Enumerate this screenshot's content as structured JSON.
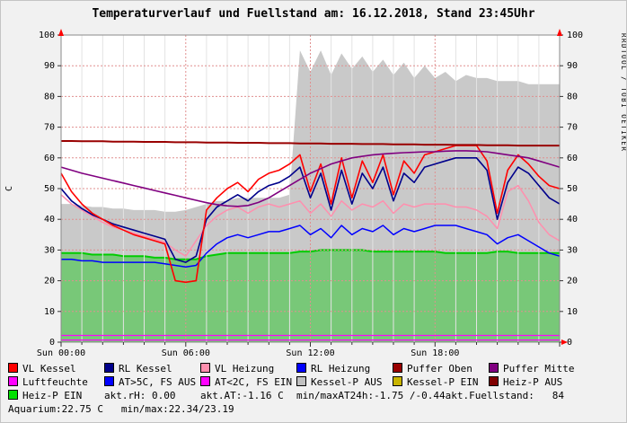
{
  "watermark": "RRDTOOL / TOBI OETIKER",
  "chart_data": {
    "type": "line",
    "title": "Temperaturverlauf und Fuellstand am: 16.12.2018, Stand 23:45Uhr",
    "xlabel": "",
    "ylabel": "C",
    "ylim": [
      0,
      100
    ],
    "yticks": [
      0,
      10,
      20,
      30,
      40,
      50,
      60,
      70,
      80,
      90,
      100
    ],
    "x_step_hours": 0.5,
    "x_range_hours": [
      0,
      24
    ],
    "x_ticks": [
      {
        "h": 0,
        "label": "Sun 00:00"
      },
      {
        "h": 6,
        "label": "Sun 06:00"
      },
      {
        "h": 12,
        "label": "Sun 12:00"
      },
      {
        "h": 18,
        "label": "Sun 18:00"
      }
    ],
    "grid": true,
    "legend_position": "bottom",
    "areas": [
      {
        "name": "Kessel-P AUS / Fuellstand",
        "fill": "#c9c9c9",
        "v": [
          45,
          45,
          44.5,
          44,
          44,
          43.5,
          43.5,
          43,
          43,
          43,
          42.5,
          42.5,
          43,
          44,
          45,
          46,
          46,
          47,
          47,
          47,
          47,
          47,
          48,
          95,
          88,
          95,
          87,
          94,
          89,
          93,
          88,
          92,
          87,
          91,
          86,
          90,
          86,
          88,
          85,
          87,
          86,
          86,
          85,
          85,
          85,
          84,
          84,
          84,
          84
        ]
      },
      {
        "name": "Heiz-P EIN",
        "fill": "rgba(0,200,0,0.40)",
        "line": "#00cc00",
        "lw": 2,
        "v": [
          29,
          29,
          29,
          28.5,
          28.5,
          28.5,
          28,
          28,
          28,
          27.5,
          27.5,
          27,
          27,
          27,
          28,
          28.5,
          29,
          29,
          29,
          29,
          29,
          29,
          29,
          29.5,
          29.5,
          30,
          30,
          30,
          30,
          30,
          29.5,
          29.5,
          29.5,
          29.5,
          29.5,
          29.5,
          29.5,
          29,
          29,
          29,
          29,
          29,
          29.5,
          29.5,
          29,
          29,
          29,
          29,
          29
        ]
      }
    ],
    "series": [
      {
        "name": "VL Heizung",
        "color": "#ff8fae",
        "w": 1.5,
        "v": [
          48,
          45,
          43,
          41,
          39,
          37.5,
          36.5,
          35.5,
          34.5,
          33.5,
          32.5,
          30,
          28,
          33,
          38,
          41,
          43,
          44,
          42,
          44,
          45,
          44,
          45,
          46,
          42,
          45,
          41,
          46,
          43,
          45,
          44,
          46,
          42,
          45,
          44,
          45,
          45,
          45,
          44,
          44,
          43,
          41,
          37,
          49,
          51,
          46,
          39,
          35,
          33
        ]
      },
      {
        "name": "RL Heizung",
        "color": "#0000ff",
        "w": 1.5,
        "v": [
          27,
          27,
          26.5,
          26.5,
          26,
          26,
          26,
          26,
          26,
          26,
          25.5,
          25,
          24.5,
          25,
          29,
          32,
          34,
          35,
          34,
          35,
          36,
          36,
          37,
          38,
          35,
          37,
          34,
          38,
          35,
          37,
          36,
          38,
          35,
          37,
          36,
          37,
          38,
          38,
          38,
          37,
          36,
          35,
          32,
          34,
          35,
          33,
          31,
          29,
          28
        ]
      },
      {
        "name": "RL Kessel",
        "color": "#00008b",
        "w": 1.6,
        "v": [
          50,
          46,
          43.5,
          41.5,
          40,
          38.5,
          37.5,
          36.5,
          35.5,
          34.5,
          33.5,
          27,
          26,
          28,
          40,
          44,
          46,
          48,
          46,
          49,
          51,
          52,
          54,
          57,
          47,
          55,
          43,
          56,
          45,
          55,
          50,
          57,
          46,
          55,
          52,
          57,
          58,
          59,
          60,
          60,
          60,
          56,
          40,
          52,
          57,
          55,
          51,
          47,
          45
        ]
      },
      {
        "name": "VL Kessel",
        "color": "#ff0000",
        "w": 1.6,
        "v": [
          55,
          49,
          45,
          42,
          40,
          38,
          36.5,
          35,
          34,
          33,
          32,
          20,
          19.5,
          20,
          43,
          47,
          50,
          52,
          49,
          53,
          55,
          56,
          58,
          61,
          49,
          58,
          45,
          60,
          47,
          59,
          52,
          61,
          48,
          59,
          55,
          61,
          62,
          63,
          64,
          64,
          64,
          59,
          42,
          56,
          61,
          58,
          54,
          51,
          50
        ]
      },
      {
        "name": "Puffer Mitte",
        "color": "#800080",
        "w": 1.6,
        "v": [
          57,
          56,
          55,
          54.2,
          53.4,
          52.6,
          51.8,
          51,
          50.2,
          49.4,
          48.6,
          47.8,
          47,
          46.2,
          45.4,
          44.8,
          44.4,
          44.2,
          44.5,
          45.5,
          47,
          49,
          51,
          53,
          55,
          56.5,
          58,
          59,
          60,
          60.5,
          61,
          61.3,
          61.5,
          61.7,
          61.8,
          62,
          62,
          62.2,
          62.3,
          62.3,
          62.2,
          62,
          61.5,
          61,
          60.5,
          60,
          59,
          58,
          57
        ]
      },
      {
        "name": "Puffer Oben",
        "color": "#990000",
        "w": 2,
        "v": [
          65.5,
          65.5,
          65.4,
          65.4,
          65.4,
          65.3,
          65.3,
          65.3,
          65.2,
          65.2,
          65.2,
          65.1,
          65.1,
          65.1,
          65,
          65,
          65,
          64.9,
          64.9,
          64.9,
          64.8,
          64.8,
          64.8,
          64.7,
          64.7,
          64.7,
          64.6,
          64.6,
          64.6,
          64.5,
          64.5,
          64.5,
          64.4,
          64.4,
          64.4,
          64.3,
          64.3,
          64.3,
          64.2,
          64.2,
          64.2,
          64.1,
          64.1,
          64.1,
          64,
          64,
          64,
          64,
          64
        ]
      },
      {
        "name": "AT<2C, FS EIN",
        "color": "#ff00ff",
        "w": 1.3,
        "constant": 2.2
      },
      {
        "name": "Luftfeuchte",
        "color": "#ff00ff",
        "w": 1.2,
        "constant": 0.7
      }
    ]
  },
  "legend": {
    "rows": [
      {
        "items": [
          {
            "swatch": "#ff0000",
            "label": "VL Kessel"
          },
          {
            "swatch": "#00008b",
            "label": "RL Kessel"
          },
          {
            "swatch": "#ff8fae",
            "label": "VL Heizung"
          },
          {
            "swatch": "#0000ff",
            "label": "RL Heizung"
          },
          {
            "swatch": "#990000",
            "label": "Puffer Oben"
          },
          {
            "swatch": "#800080",
            "label": "Puffer Mitte"
          }
        ]
      },
      {
        "items": [
          {
            "swatch": "#ff00ff",
            "label": "Luftfeuchte"
          },
          {
            "swatch": "#0000ff",
            "label": "AT>5C, FS AUS"
          },
          {
            "swatch": "#ff00ff",
            "label": "AT<2C, FS EIN"
          },
          {
            "swatch": "#c0c0c0",
            "label": "Kessel-P AUS"
          },
          {
            "swatch": "#c8b400",
            "label": "Kessel-P EIN"
          },
          {
            "swatch": "#800000",
            "label": "Heiz-P AUS"
          }
        ]
      },
      {
        "items": [
          {
            "swatch": "#00e000",
            "label": "Heiz-P EIN"
          },
          {
            "label": "akt.rH: 0.00"
          },
          {
            "label": "akt.AT:-1.16 C"
          },
          {
            "label": "min/maxAT24h:-1.75 /-0.44"
          },
          {
            "label": "akt.Fuellstand:   84"
          }
        ]
      },
      {
        "items": [
          {
            "label": "Aquarium:22.75 C   min/max:22.34/23.19"
          }
        ]
      }
    ]
  }
}
